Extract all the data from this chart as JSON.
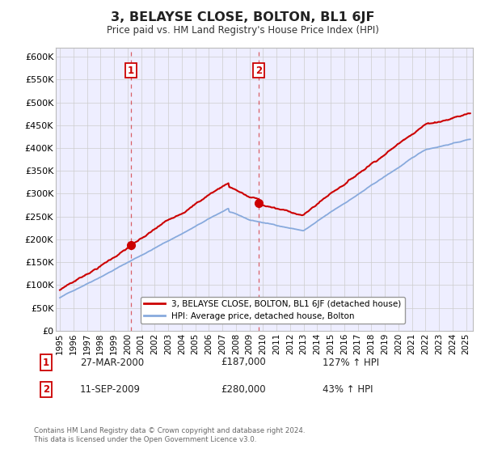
{
  "title": "3, BELAYSE CLOSE, BOLTON, BL1 6JF",
  "subtitle": "Price paid vs. HM Land Registry's House Price Index (HPI)",
  "ylim": [
    0,
    620000
  ],
  "yticks": [
    0,
    50000,
    100000,
    150000,
    200000,
    250000,
    300000,
    350000,
    400000,
    450000,
    500000,
    550000,
    600000
  ],
  "sale1_t": 2000.23,
  "sale1_price": 187000,
  "sale2_t": 2009.7,
  "sale2_price": 280000,
  "vline_color": "#cc0000",
  "property_color": "#cc0000",
  "hpi_color": "#88aadd",
  "legend_property": "3, BELAYSE CLOSE, BOLTON, BL1 6JF (detached house)",
  "legend_hpi": "HPI: Average price, detached house, Bolton",
  "annotation1_date": "27-MAR-2000",
  "annotation1_price": "£187,000",
  "annotation1_hpi": "127% ↑ HPI",
  "annotation2_date": "11-SEP-2009",
  "annotation2_price": "£280,000",
  "annotation2_hpi": "43% ↑ HPI",
  "footer": "Contains HM Land Registry data © Crown copyright and database right 2024.\nThis data is licensed under the Open Government Licence v3.0.",
  "background_color": "#eeeeff",
  "xlim_left": 1994.7,
  "xlim_right": 2025.5
}
